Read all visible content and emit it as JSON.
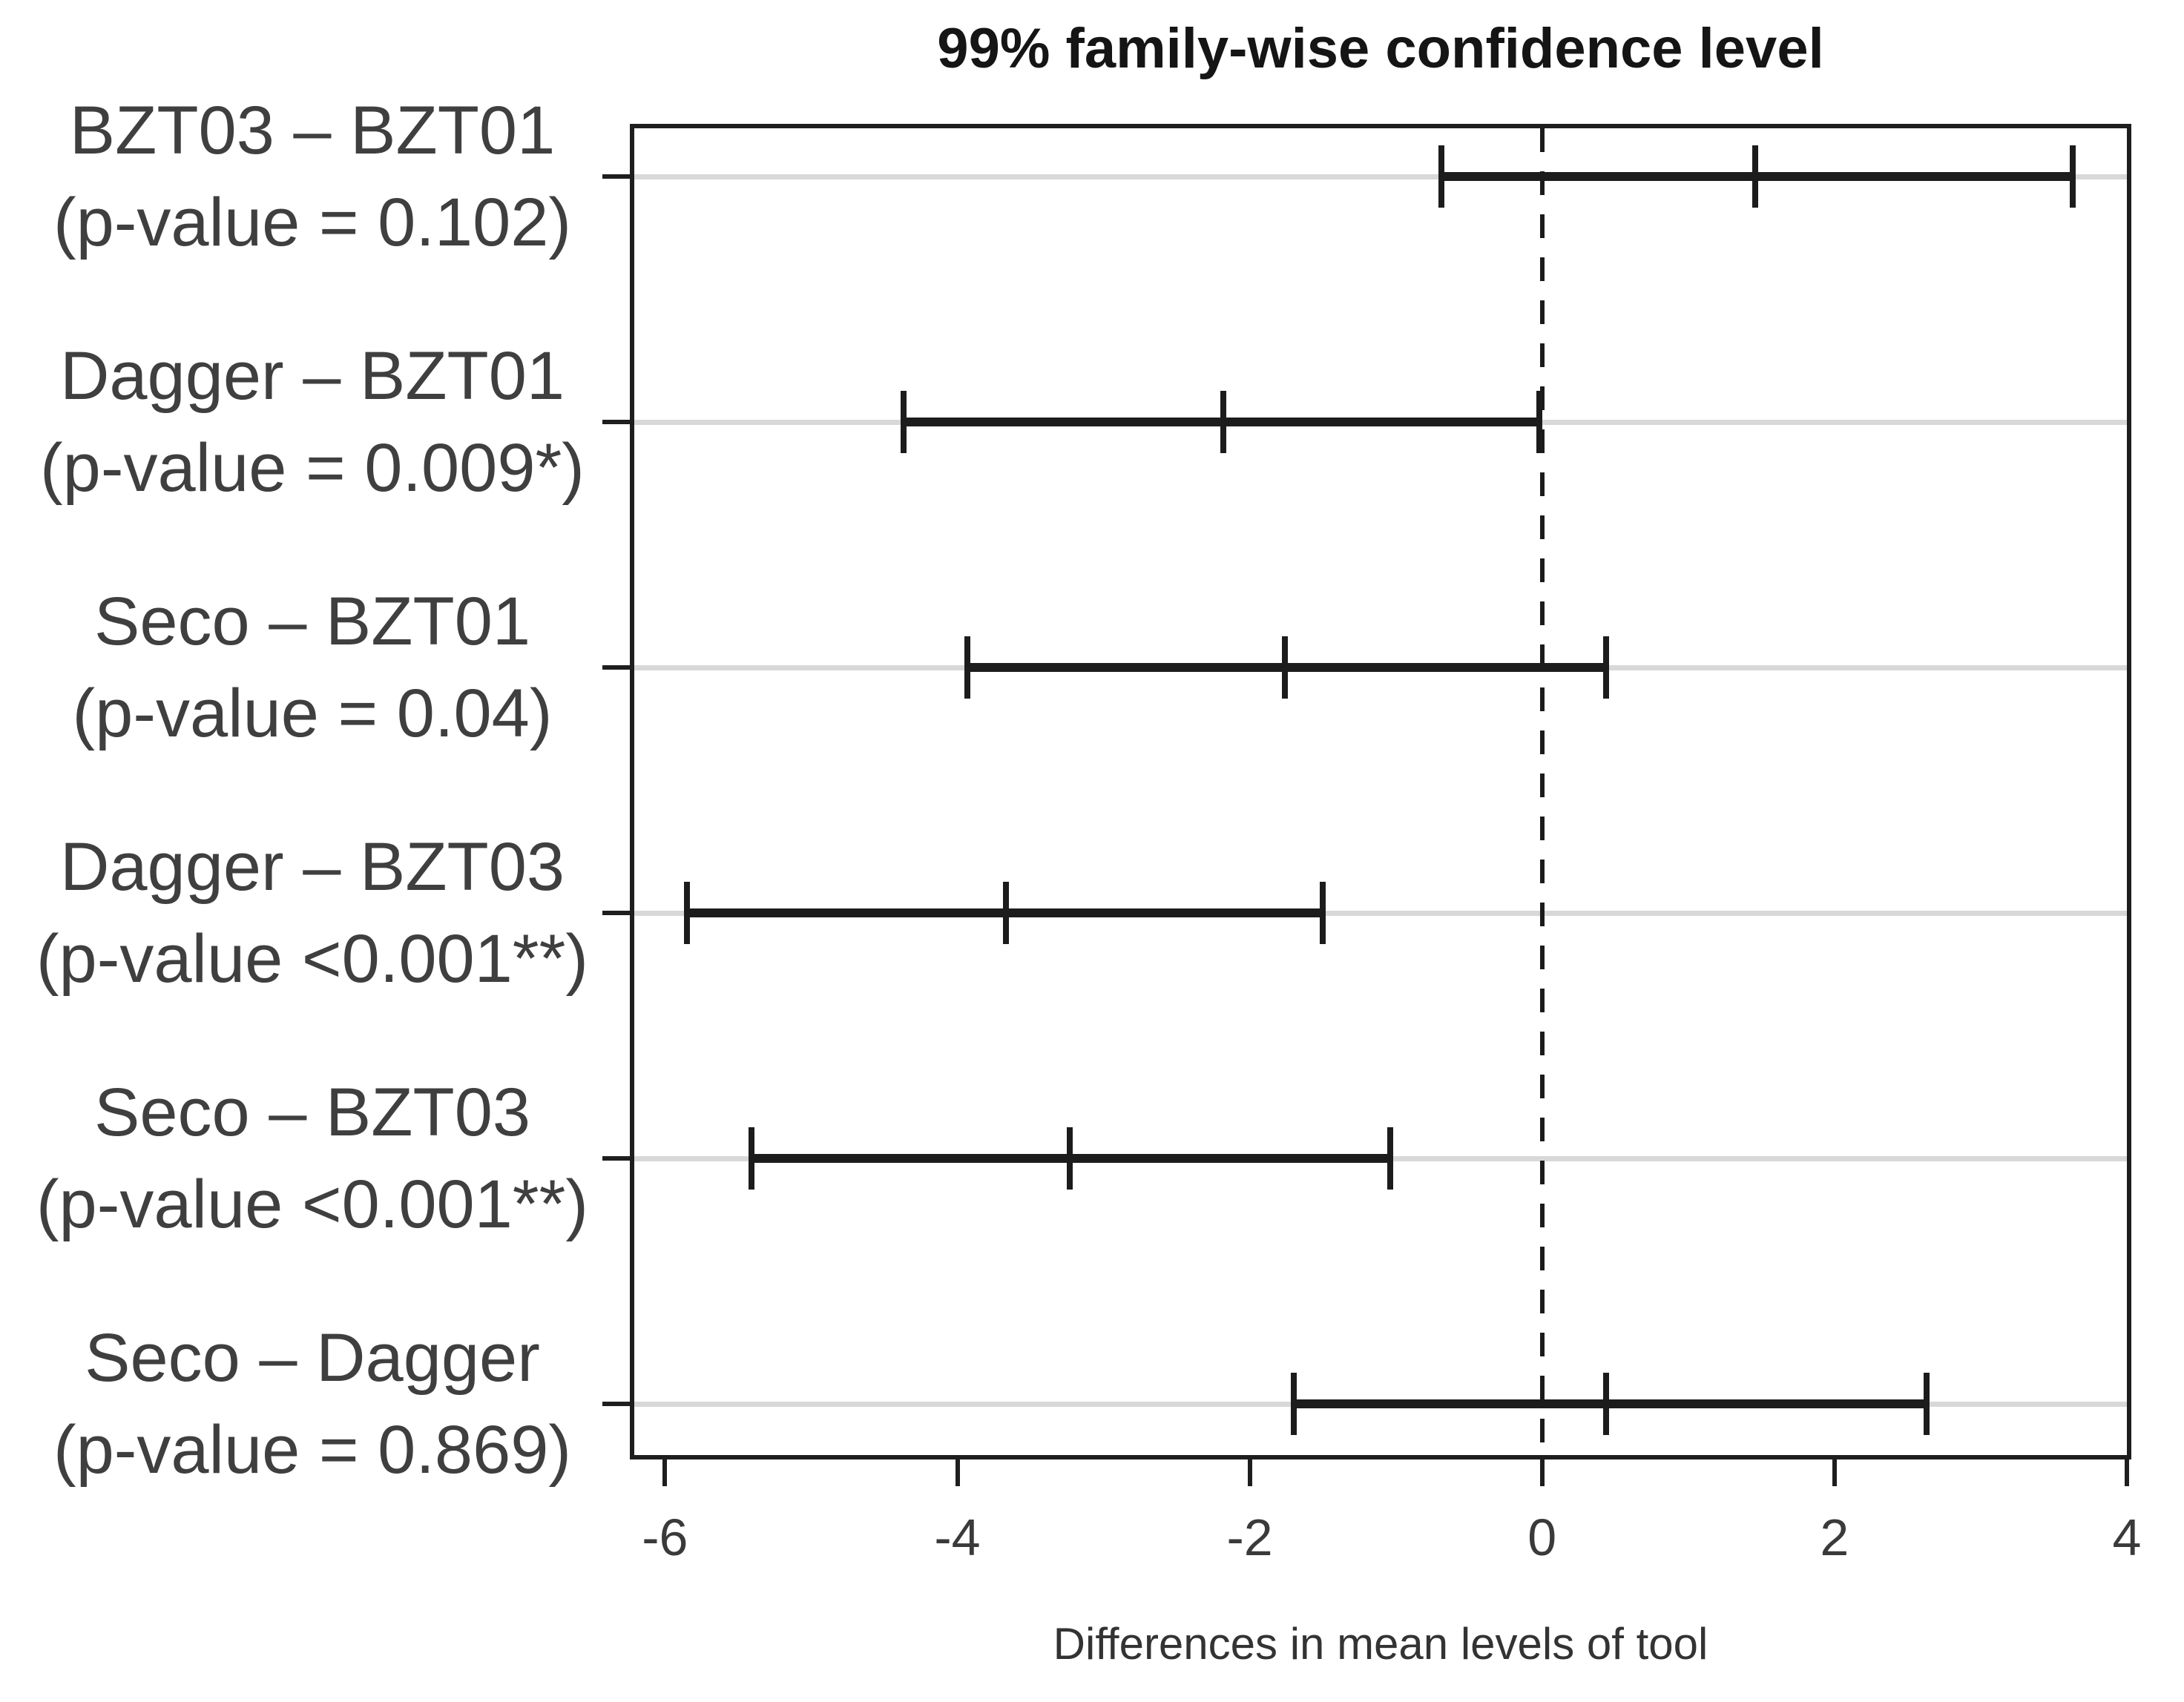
{
  "chart_data": {
    "type": "scatter",
    "subtype": "tukey-confidence-intervals",
    "title": "99% family-wise confidence level",
    "xlabel": "Differences in mean levels of tool",
    "xlim": [
      -6.21,
      4.0
    ],
    "x_ticks": [
      -6,
      -4,
      -2,
      0,
      2,
      4
    ],
    "grid": "light horizontal line per comparison row",
    "legend": "none",
    "zero_reference_line": {
      "x": 0,
      "style": "dashed",
      "color": "#1b1b1b"
    },
    "rows": [
      {
        "comparison": "BZT03 – BZT01",
        "p_label": "(p-value = 0.102)",
        "lower": -0.69,
        "center": 1.46,
        "upper": 3.63
      },
      {
        "comparison": "Dagger – BZT01",
        "p_label": "(p-value = 0.009*)",
        "lower": -4.37,
        "center": -2.18,
        "upper": -0.02
      },
      {
        "comparison": "Seco – BZT01",
        "p_label": "(p-value = 0.04)",
        "lower": -3.93,
        "center": -1.76,
        "upper": 0.44
      },
      {
        "comparison": "Dagger – BZT03",
        "p_label": "(p-value <0.001**)",
        "lower": -5.85,
        "center": -3.67,
        "upper": -1.5
      },
      {
        "comparison": "Seco – BZT03",
        "p_label": "(p-value <0.001**)",
        "lower": -5.41,
        "center": -3.23,
        "upper": -1.04
      },
      {
        "comparison": "Seco – Dagger",
        "p_label": "(p-value = 0.869)",
        "lower": -1.7,
        "center": 0.44,
        "upper": 2.63
      }
    ],
    "colors": {
      "interval": "#1c1c1c",
      "grid": "#d8d8d8",
      "border": "#1e1e1e",
      "label_text": "#3f3f3f",
      "tick_text": "#3a3a3a",
      "title_text": "#151515"
    }
  }
}
